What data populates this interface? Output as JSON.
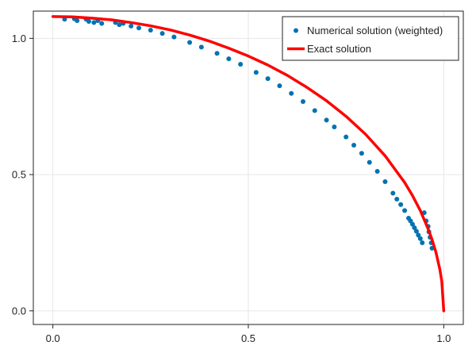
{
  "chart_data": {
    "type": "scatter",
    "title": "",
    "xlabel": "",
    "ylabel": "",
    "xlim": [
      -0.05,
      1.05
    ],
    "ylim": [
      -0.05,
      1.1
    ],
    "grid": true,
    "legend_position": "top-right",
    "x_ticks": [
      0.0,
      0.5,
      1.0
    ],
    "y_ticks": [
      0.0,
      0.5,
      1.0
    ],
    "x_tick_labels": [
      "0.0",
      "0.5",
      "1.0"
    ],
    "y_tick_labels": [
      "0.0",
      "0.5",
      "1.0"
    ],
    "series": [
      {
        "name": "Numerical solution (weighted)",
        "kind": "scatter",
        "color": "#0072b2",
        "x": [
          0.03,
          0.055,
          0.062,
          0.085,
          0.092,
          0.105,
          0.115,
          0.125,
          0.16,
          0.17,
          0.18,
          0.2,
          0.22,
          0.25,
          0.28,
          0.31,
          0.35,
          0.38,
          0.42,
          0.45,
          0.48,
          0.52,
          0.55,
          0.58,
          0.61,
          0.64,
          0.67,
          0.7,
          0.72,
          0.75,
          0.77,
          0.79,
          0.81,
          0.83,
          0.85,
          0.87,
          0.88,
          0.89,
          0.9,
          0.91,
          0.915,
          0.92,
          0.925,
          0.93,
          0.935,
          0.94,
          0.945,
          0.95,
          0.955,
          0.96,
          0.962,
          0.965,
          0.968,
          0.97
        ],
        "y": [
          1.07,
          1.072,
          1.065,
          1.07,
          1.062,
          1.058,
          1.065,
          1.055,
          1.058,
          1.05,
          1.055,
          1.045,
          1.038,
          1.03,
          1.018,
          1.005,
          0.985,
          0.968,
          0.945,
          0.925,
          0.905,
          0.875,
          0.852,
          0.826,
          0.798,
          0.768,
          0.735,
          0.7,
          0.675,
          0.638,
          0.608,
          0.578,
          0.545,
          0.512,
          0.474,
          0.432,
          0.41,
          0.39,
          0.368,
          0.34,
          0.33,
          0.318,
          0.305,
          0.292,
          0.278,
          0.265,
          0.25,
          0.36,
          0.33,
          0.31,
          0.29,
          0.27,
          0.25,
          0.23
        ]
      },
      {
        "name": "Exact solution",
        "kind": "line",
        "color": "#ff0000",
        "x": [
          0.0,
          0.05,
          0.1,
          0.15,
          0.2,
          0.25,
          0.3,
          0.35,
          0.4,
          0.45,
          0.5,
          0.55,
          0.6,
          0.65,
          0.7,
          0.75,
          0.8,
          0.85,
          0.9,
          0.92,
          0.94,
          0.96,
          0.97,
          0.98,
          0.99,
          0.995,
          1.0
        ],
        "y": [
          1.08,
          1.079,
          1.074,
          1.068,
          1.058,
          1.046,
          1.031,
          1.012,
          0.99,
          0.964,
          0.935,
          0.902,
          0.864,
          0.82,
          0.771,
          0.714,
          0.648,
          0.569,
          0.471,
          0.423,
          0.368,
          0.301,
          0.262,
          0.215,
          0.152,
          0.108,
          0.0
        ]
      }
    ]
  }
}
